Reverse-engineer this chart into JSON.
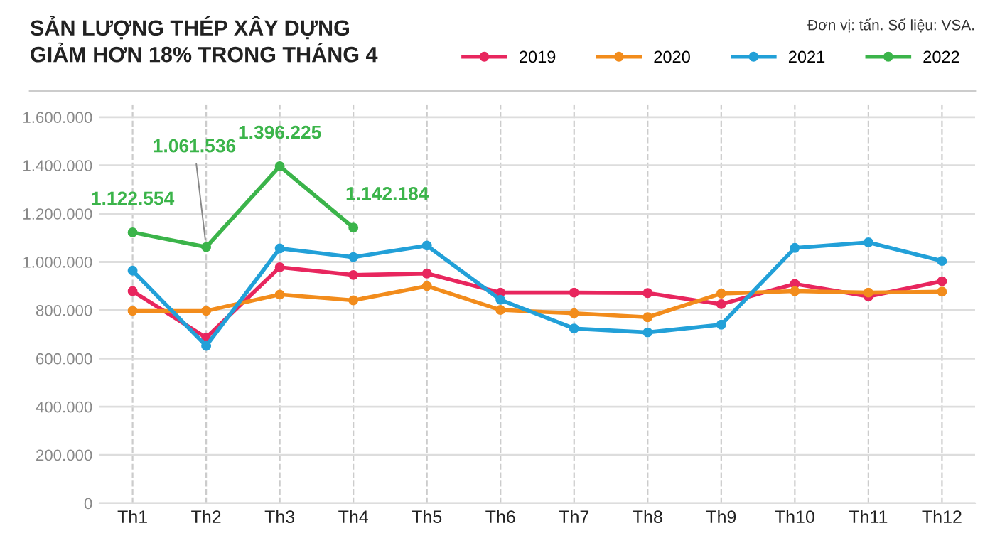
{
  "chart_data": {
    "type": "line",
    "title": "SẢN LƯỢNG THÉP XÂY DỰNG\nGIẢM HƠN 18% TRONG THÁNG 4",
    "annotations": [
      "Đơn vị: tấn. Số liệu: VSA."
    ],
    "categories": [
      "Th1",
      "Th2",
      "Th3",
      "Th4",
      "Th5",
      "Th6",
      "Th7",
      "Th8",
      "Th9",
      "Th10",
      "Th11",
      "Th12"
    ],
    "series": [
      {
        "name": "2019",
        "color": "#e8265e",
        "values": [
          879000,
          686000,
          978000,
          946000,
          952000,
          873000,
          873000,
          871000,
          825000,
          909000,
          857000,
          920000
        ]
      },
      {
        "name": "2020",
        "color": "#f28c1c",
        "values": [
          797000,
          797000,
          865000,
          841000,
          900000,
          801000,
          787000,
          771000,
          869000,
          879000,
          873000,
          877000
        ]
      },
      {
        "name": "2021",
        "color": "#22a0d8",
        "values": [
          964000,
          652000,
          1056000,
          1020000,
          1068000,
          843000,
          724000,
          708000,
          740000,
          1058000,
          1081000,
          1004000
        ]
      },
      {
        "name": "2022",
        "color": "#3bb44a",
        "values": [
          1122554,
          1061536,
          1396225,
          1142184,
          null,
          null,
          null,
          null,
          null,
          null,
          null,
          null
        ],
        "value_labels": [
          "1.122.554",
          "1.061.536",
          "1.396.225",
          "1.142.184",
          null,
          null,
          null,
          null,
          null,
          null,
          null,
          null
        ]
      }
    ],
    "ylim": [
      0,
      1650000
    ],
    "yticks": [
      {
        "value": 0,
        "label": "0"
      },
      {
        "value": 200000,
        "label": "200.000"
      },
      {
        "value": 400000,
        "label": "400.000"
      },
      {
        "value": 600000,
        "label": "600.000"
      },
      {
        "value": 800000,
        "label": "800.000"
      },
      {
        "value": 1000000,
        "label": "1.000.000"
      },
      {
        "value": 1200000,
        "label": "1.200.000"
      },
      {
        "value": 1400000,
        "label": "1.400.000"
      },
      {
        "value": 1600000,
        "label": "1.600.000"
      }
    ],
    "grid": true,
    "legend": "top right",
    "marker": "circle",
    "line_style": "solid"
  }
}
